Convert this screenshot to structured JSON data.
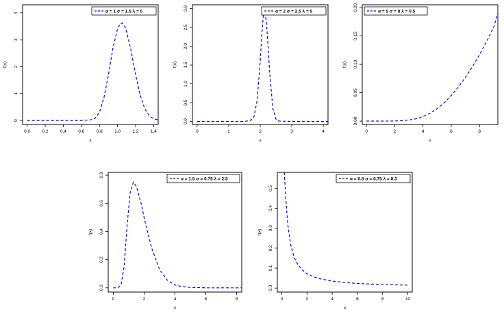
{
  "chart_data": [
    {
      "type": "line",
      "title": "",
      "xlabel": "x",
      "ylabel": "f(x)",
      "xlim": [
        -0.05,
        1.45
      ],
      "ylim": [
        -0.15,
        4.3
      ],
      "xticks": [
        0.0,
        0.2,
        0.4,
        0.6,
        0.8,
        1.0,
        1.2,
        1.4
      ],
      "xtick_labels": [
        "0.0",
        "0.2",
        "0.4",
        "0.6",
        "0.8",
        "1.0",
        "1.2",
        "1.4"
      ],
      "yticks": [
        0,
        1,
        2,
        3,
        4
      ],
      "ytick_labels": [
        "0",
        "1",
        "2",
        "3",
        "4"
      ],
      "legend_position": "top-right",
      "grid": false,
      "series": [
        {
          "name": "α = 1  σ = 1.5  λ = 5",
          "color": "#0000ff",
          "style": "dashed",
          "x": [
            0.0,
            0.2,
            0.4,
            0.6,
            0.7,
            0.75,
            0.8,
            0.85,
            0.9,
            0.95,
            1.0,
            1.03,
            1.05,
            1.08,
            1.1,
            1.15,
            1.2,
            1.25,
            1.3,
            1.35,
            1.4,
            1.45
          ],
          "y": [
            0.0,
            0.0,
            0.0,
            0.0,
            0.02,
            0.07,
            0.3,
            0.85,
            1.7,
            2.7,
            3.4,
            3.6,
            3.62,
            3.5,
            3.3,
            2.6,
            1.7,
            0.95,
            0.45,
            0.18,
            0.06,
            0.02
          ]
        }
      ]
    },
    {
      "type": "line",
      "title": "",
      "xlabel": "x",
      "ylabel": "f(x)",
      "xlim": [
        -0.15,
        4.15
      ],
      "ylim": [
        -0.08,
        3.1
      ],
      "xticks": [
        0,
        1,
        2,
        3,
        4
      ],
      "xtick_labels": [
        "0",
        "1",
        "2",
        "3",
        "4"
      ],
      "yticks": [
        0.0,
        0.5,
        1.0,
        1.5,
        2.0,
        2.5,
        3.0
      ],
      "ytick_labels": [
        "0.0",
        "0.5",
        "1.0",
        "1.5",
        "2.0",
        "2.5",
        "3.0"
      ],
      "legend_position": "top-right",
      "grid": false,
      "series": [
        {
          "name": "α = 2  σ = 2.5  λ = 5",
          "color": "#0000ff",
          "style": "dashed",
          "x": [
            0.0,
            1.0,
            1.5,
            1.7,
            1.8,
            1.9,
            2.0,
            2.05,
            2.1,
            2.15,
            2.2,
            2.25,
            2.3,
            2.4,
            2.5,
            2.6,
            3.0,
            4.2
          ],
          "y": [
            0.0,
            0.0,
            0.0,
            0.03,
            0.12,
            0.55,
            1.6,
            2.3,
            2.85,
            2.95,
            2.6,
            2.0,
            1.3,
            0.35,
            0.06,
            0.01,
            0.0,
            0.0
          ]
        }
      ]
    },
    {
      "type": "line",
      "title": "",
      "xlabel": "x",
      "ylabel": "f(x)",
      "xlim": [
        -0.3,
        9.3
      ],
      "ylim": [
        -0.006,
        0.205
      ],
      "xticks": [
        0,
        2,
        4,
        6,
        8
      ],
      "xtick_labels": [
        "0",
        "2",
        "4",
        "6",
        "8"
      ],
      "yticks": [
        0.0,
        0.05,
        0.1,
        0.15,
        0.2
      ],
      "ytick_labels": [
        "0.00",
        "0.05",
        "0.10",
        "0.15",
        "0.20"
      ],
      "legend_position": "top-left",
      "grid": false,
      "series": [
        {
          "name": "α = 5  σ = 8  λ = 0.5",
          "color": "#0000ff",
          "style": "dashed",
          "x": [
            0.0,
            1.0,
            2.0,
            2.5,
            3.0,
            3.5,
            4.0,
            4.5,
            5.0,
            5.5,
            6.0,
            6.5,
            7.0,
            7.5,
            8.0,
            8.5,
            9.0,
            9.3
          ],
          "y": [
            0.0,
            0.0,
            0.0002,
            0.0007,
            0.0018,
            0.004,
            0.008,
            0.014,
            0.022,
            0.032,
            0.045,
            0.06,
            0.077,
            0.096,
            0.117,
            0.14,
            0.165,
            0.19
          ]
        }
      ]
    },
    {
      "type": "line",
      "title": "",
      "xlabel": "x",
      "ylabel": "f(x)",
      "xlim": [
        -0.33,
        8.33
      ],
      "ylim": [
        -0.03,
        0.82
      ],
      "xticks": [
        0,
        2,
        4,
        6,
        8
      ],
      "xtick_labels": [
        "0",
        "2",
        "4",
        "6",
        "8"
      ],
      "yticks": [
        0.0,
        0.2,
        0.4,
        0.6,
        0.8
      ],
      "ytick_labels": [
        "0.0",
        "0.2",
        "0.4",
        "0.6",
        "0.8"
      ],
      "legend_position": "top-right",
      "grid": false,
      "series": [
        {
          "name": "α = 1.5  σ = 0.75  λ = 2.5",
          "color": "#0000ff",
          "style": "dashed",
          "x": [
            0.0,
            0.3,
            0.5,
            0.7,
            0.9,
            1.1,
            1.3,
            1.5,
            1.8,
            2.1,
            2.5,
            3.0,
            3.5,
            4.0,
            4.5,
            5.0,
            6.0,
            7.0,
            8.3
          ],
          "y": [
            0.0,
            0.0,
            0.02,
            0.15,
            0.45,
            0.68,
            0.75,
            0.72,
            0.6,
            0.45,
            0.28,
            0.13,
            0.055,
            0.02,
            0.008,
            0.003,
            0.0,
            0.0,
            0.0
          ]
        }
      ]
    },
    {
      "type": "line",
      "title": "",
      "xlabel": "x",
      "ylabel": "f(x)",
      "xlim": [
        -0.35,
        10.35
      ],
      "ylim": [
        -0.02,
        0.58
      ],
      "xticks": [
        0,
        2,
        4,
        6,
        8,
        10
      ],
      "xtick_labels": [
        "0",
        "2",
        "4",
        "6",
        "8",
        "10"
      ],
      "yticks": [
        0.0,
        0.1,
        0.2,
        0.3,
        0.4,
        0.5
      ],
      "ytick_labels": [
        "0.0",
        "0.1",
        "0.2",
        "0.3",
        "0.4",
        "0.5"
      ],
      "legend_position": "top-right",
      "grid": false,
      "series": [
        {
          "name": "α = 0.8  σ = 0.75  λ = 0.3",
          "color": "#0000ff",
          "style": "dashed",
          "x": [
            0.2,
            0.3,
            0.4,
            0.5,
            0.7,
            1.0,
            1.3,
            1.6,
            2.0,
            2.5,
            3.0,
            4.0,
            5.0,
            6.0,
            7.0,
            8.0,
            9.0,
            10.0
          ],
          "y": [
            0.58,
            0.47,
            0.38,
            0.31,
            0.22,
            0.15,
            0.115,
            0.092,
            0.072,
            0.057,
            0.047,
            0.035,
            0.028,
            0.023,
            0.02,
            0.018,
            0.016,
            0.015
          ]
        }
      ]
    }
  ]
}
